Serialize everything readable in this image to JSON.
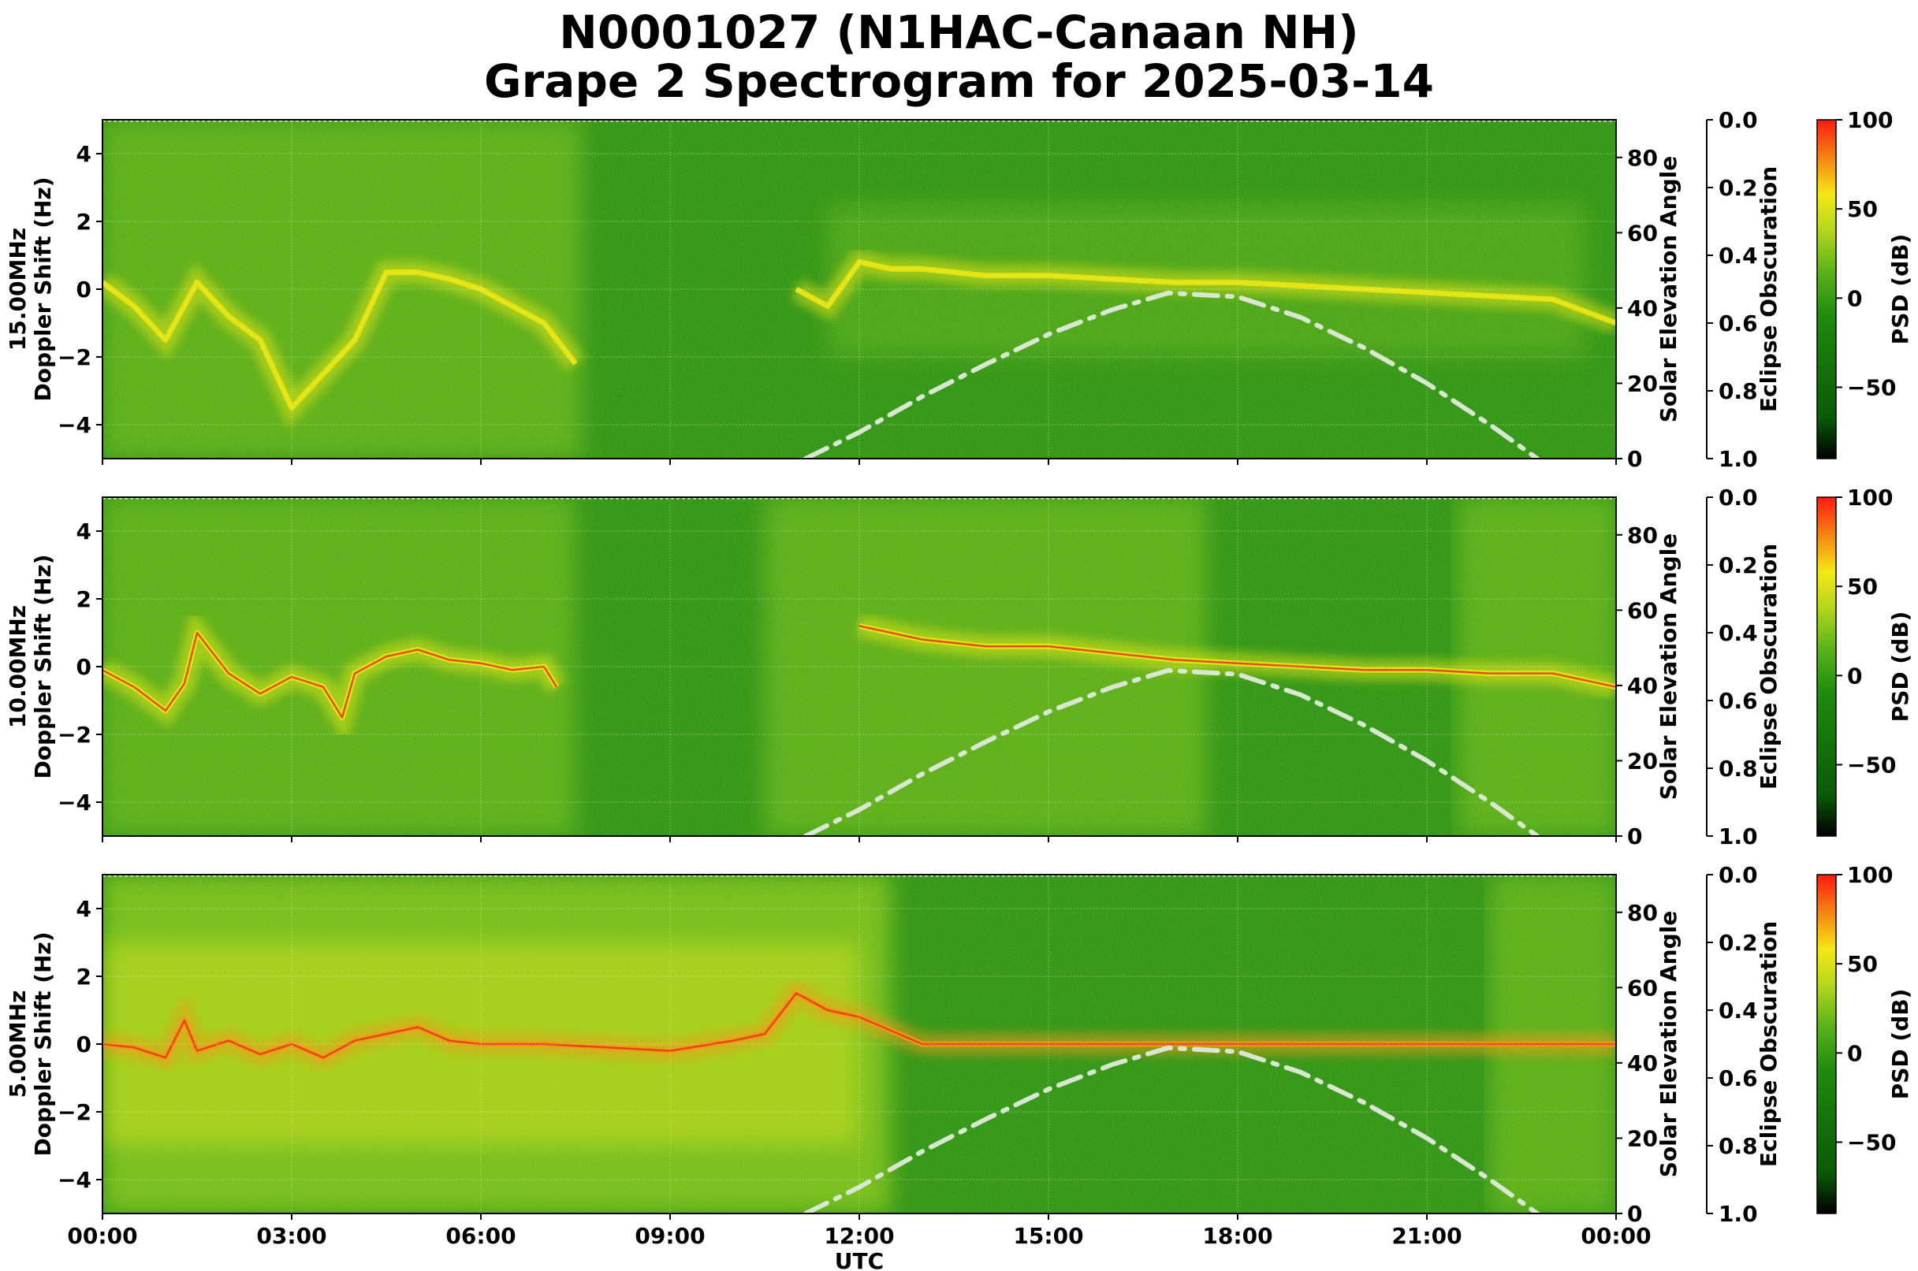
{
  "figure": {
    "title_line1": "N0001027 (N1HAC-Canaan NH)",
    "title_line2": "Grape 2 Spectrogram for 2025-03-14",
    "xlabel": "UTC"
  },
  "colors": {
    "spectrogram_background": "#1e8a0e",
    "noise_band": "#7ec218",
    "trace_yellow": "#e8e616",
    "trace_orange": "#f39a12",
    "trace_red": "#e2361a",
    "solar_curve": "#d8e8d0",
    "colorbar_stops": [
      "#000000",
      "#0a5a06",
      "#1e8a0e",
      "#59b21a",
      "#b8d81c",
      "#f5e814",
      "#f57a12",
      "#ff1a10"
    ]
  },
  "chart_data": [
    {
      "type": "heatmap",
      "frequency": "15.00MHz",
      "ylabel": "15.00MHz\nDoppler Shift (Hz)",
      "x_ticks": [
        "00:00",
        "03:00",
        "06:00",
        "09:00",
        "12:00",
        "15:00",
        "18:00",
        "21:00",
        "00:00"
      ],
      "x_range_hours": [
        0,
        24
      ],
      "ylim": [
        -5,
        5
      ],
      "y_ticks": [
        "4",
        "2",
        "0",
        "−2",
        "−4"
      ],
      "grid": true,
      "doppler_trace": {
        "hours": [
          0,
          0.5,
          1,
          1.5,
          2,
          2.5,
          3,
          3.5,
          4,
          4.5,
          5,
          5.5,
          6,
          6.5,
          7,
          7.5,
          10.5,
          11,
          11.5,
          12,
          12.5,
          13,
          14,
          15,
          16,
          17,
          18,
          19,
          20,
          21,
          22,
          23,
          24
        ],
        "shift_hz": [
          0.2,
          -0.5,
          -1.5,
          0.2,
          -0.8,
          -1.5,
          -3.5,
          -2.5,
          -1.5,
          0.5,
          0.5,
          0.3,
          0,
          -0.5,
          -1.0,
          -2.2,
          null,
          0,
          -0.5,
          0.8,
          0.6,
          0.6,
          0.4,
          0.4,
          0.3,
          0.2,
          0.2,
          0.1,
          0,
          -0.1,
          -0.2,
          -0.3,
          -1.0
        ]
      },
      "solar_elevation": {
        "label": "Solar Elevation Angle",
        "ylim": [
          0,
          90
        ],
        "ticks": [
          "0",
          "20",
          "40",
          "60",
          "80"
        ],
        "hours": [
          11.15,
          12,
          13,
          14,
          15,
          16,
          16.9,
          18,
          19,
          20,
          21,
          22,
          22.75
        ],
        "degrees": [
          0,
          7,
          16.5,
          25,
          33,
          39.5,
          44,
          43,
          37.5,
          29.5,
          20,
          9,
          0
        ]
      },
      "eclipse_obscuration": {
        "label": "Eclipse Obscuration",
        "ylim": [
          0.0,
          1.0
        ],
        "ticks": [
          "0.0",
          "0.2",
          "0.4",
          "0.6",
          "0.8",
          "1.0"
        ]
      },
      "colorbar": {
        "label": "PSD (dB)",
        "range": [
          -90,
          100
        ],
        "ticks": [
          "100",
          "50",
          "0",
          "−50"
        ]
      }
    },
    {
      "type": "heatmap",
      "frequency": "10.00MHz",
      "ylabel": "10.00MHz\nDoppler Shift (Hz)",
      "x_ticks": [
        "00:00",
        "03:00",
        "06:00",
        "09:00",
        "12:00",
        "15:00",
        "18:00",
        "21:00",
        "00:00"
      ],
      "x_range_hours": [
        0,
        24
      ],
      "ylim": [
        -5,
        5
      ],
      "y_ticks": [
        "4",
        "2",
        "0",
        "−2",
        "−4"
      ],
      "grid": true,
      "doppler_trace": {
        "hours": [
          0,
          0.5,
          1,
          1.3,
          1.5,
          2,
          2.5,
          3,
          3.5,
          3.8,
          4,
          4.5,
          5,
          5.5,
          6,
          6.5,
          7,
          7.2,
          11.5,
          12,
          13,
          14,
          15,
          16,
          17,
          18,
          19,
          20,
          21,
          22,
          23,
          24
        ],
        "shift_hz": [
          -0.1,
          -0.6,
          -1.3,
          -0.5,
          1.0,
          -0.2,
          -0.8,
          -0.3,
          -0.6,
          -1.5,
          -0.2,
          0.3,
          0.5,
          0.2,
          0.1,
          -0.1,
          0,
          -0.6,
          null,
          1.2,
          0.8,
          0.6,
          0.6,
          0.4,
          0.2,
          0.1,
          0,
          -0.1,
          -0.1,
          -0.2,
          -0.2,
          -0.6
        ]
      },
      "solar_elevation": {
        "label": "Solar Elevation Angle",
        "ylim": [
          0,
          90
        ],
        "ticks": [
          "0",
          "20",
          "40",
          "60",
          "80"
        ],
        "hours": [
          11.15,
          12,
          13,
          14,
          15,
          16,
          16.9,
          18,
          19,
          20,
          21,
          22,
          22.75
        ],
        "degrees": [
          0,
          7,
          16.5,
          25,
          33,
          39.5,
          44,
          43,
          37.5,
          29.5,
          20,
          9,
          0
        ]
      },
      "eclipse_obscuration": {
        "label": "Eclipse Obscuration",
        "ylim": [
          0.0,
          1.0
        ],
        "ticks": [
          "0.0",
          "0.2",
          "0.4",
          "0.6",
          "0.8",
          "1.0"
        ]
      },
      "colorbar": {
        "label": "PSD (dB)",
        "range": [
          -90,
          100
        ],
        "ticks": [
          "100",
          "50",
          "0",
          "−50"
        ]
      }
    },
    {
      "type": "heatmap",
      "frequency": "5.00MHz",
      "ylabel": "5.00MHz\nDoppler Shift (Hz)",
      "x_ticks": [
        "00:00",
        "03:00",
        "06:00",
        "09:00",
        "12:00",
        "15:00",
        "18:00",
        "21:00",
        "00:00"
      ],
      "x_range_hours": [
        0,
        24
      ],
      "ylim": [
        -5,
        5
      ],
      "y_ticks": [
        "4",
        "2",
        "0",
        "−2",
        "−4"
      ],
      "grid": true,
      "doppler_trace": {
        "hours": [
          0,
          0.5,
          1,
          1.3,
          1.5,
          2,
          2.5,
          3,
          3.5,
          4,
          4.5,
          5,
          5.5,
          6,
          7,
          8,
          9,
          10,
          10.5,
          11,
          11.5,
          12,
          13,
          15,
          18,
          21,
          24
        ],
        "shift_hz": [
          0,
          -0.1,
          -0.4,
          0.7,
          -0.2,
          0.1,
          -0.3,
          0,
          -0.4,
          0.1,
          0.3,
          0.5,
          0.1,
          0,
          0,
          -0.1,
          -0.2,
          0.1,
          0.3,
          1.5,
          1.0,
          0.8,
          0,
          0,
          0,
          0,
          0
        ]
      },
      "solar_elevation": {
        "label": "Solar Elevation Angle",
        "ylim": [
          0,
          90
        ],
        "ticks": [
          "0",
          "20",
          "40",
          "60",
          "80"
        ],
        "hours": [
          11.15,
          12,
          13,
          14,
          15,
          16,
          16.9,
          18,
          19,
          20,
          21,
          22,
          22.75
        ],
        "degrees": [
          0,
          7,
          16.5,
          25,
          33,
          39.5,
          44,
          43,
          37.5,
          29.5,
          20,
          9,
          0
        ]
      },
      "eclipse_obscuration": {
        "label": "Eclipse Obscuration",
        "ylim": [
          0.0,
          1.0
        ],
        "ticks": [
          "0.0",
          "0.2",
          "0.4",
          "0.6",
          "0.8",
          "1.0"
        ]
      },
      "colorbar": {
        "label": "PSD (dB)",
        "range": [
          -90,
          100
        ],
        "ticks": [
          "100",
          "50",
          "0",
          "−50"
        ]
      }
    }
  ]
}
